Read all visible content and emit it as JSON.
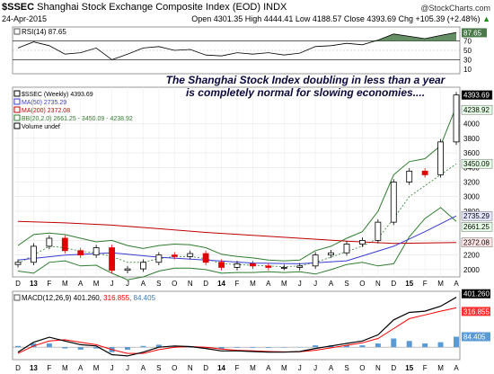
{
  "header": {
    "symbol": "$SSEC",
    "name": "Shanghai Stock Exchange Composite Index (EOD)",
    "exchange": "INDX",
    "source": "@StockCharts.com",
    "date": "24-Apr-2015",
    "open": "Open 4301.35",
    "high": "High 4444.41",
    "low": "Low 4188.57",
    "close": "Close 4393.69",
    "chg": "Chg +105.39 (+2.48%)",
    "chg_arrow": "▲"
  },
  "annotation": {
    "line1": "The Shanghai Stock Index doubling in less than a year",
    "line2": "is completely normal for slowing economies...."
  },
  "rsi_panel": {
    "legend": "RSI(14) 87.65",
    "ticks": [
      "90",
      "70",
      "50",
      "30",
      "10"
    ],
    "value_badge": "87.65",
    "current": 87.65
  },
  "price_panel": {
    "legend": [
      {
        "text": "$SSEC (Weekly) 4393.69",
        "color": "#000000"
      },
      {
        "text": "MA(50) 2735.29",
        "color": "#3a3ad0"
      },
      {
        "text": "MA(200) 2372.08",
        "color": "#c00000"
      },
      {
        "text": "BB(20,2.0) 2661.25 - 3450.09 - 4238.92",
        "color": "#2e7d2e"
      },
      {
        "text": "Volume undef",
        "color": "#000000"
      }
    ],
    "y_ticks": [
      "4000",
      "3800",
      "3600",
      "3400",
      "3200",
      "3000",
      "2800",
      "2600",
      "2400",
      "2200",
      "2000"
    ],
    "badges": [
      {
        "text": "4393.69",
        "value": 4393.69,
        "fill": "#000000",
        "color": "#ffffff"
      },
      {
        "text": "4238.92",
        "value": 4238.92,
        "fill": "#e6ffe6",
        "color": "#000000"
      },
      {
        "text": "3450.09",
        "value": 3450.09,
        "fill": "#e6ffe6",
        "color": "#000000"
      },
      {
        "text": "2735.29",
        "value": 2735.29,
        "fill": "#e6e6ff",
        "color": "#000000"
      },
      {
        "text": "2661.25",
        "value": 2661.25,
        "fill": "#e6ffe6",
        "color": "#000000"
      },
      {
        "text": "2372.08",
        "value": 2372.08,
        "fill": "#ffe6e6",
        "color": "#000000"
      }
    ]
  },
  "macd_panel": {
    "legend_label": "MACD(12,26,9)",
    "legend_macd": "401.260",
    "legend_signal": "316.855",
    "legend_hist": "84.405",
    "badges": [
      {
        "text": "401.260",
        "value": 401.26,
        "fill": "#000000",
        "color": "#ffffff"
      },
      {
        "text": "316.855",
        "value": 316.855,
        "fill": "#ff3030",
        "color": "#ffffff"
      },
      {
        "text": "84.405",
        "value": 84.405,
        "fill": "#5b9bd5",
        "color": "#ffffff"
      }
    ]
  },
  "x_axis": {
    "labels": [
      "D",
      "13",
      "F",
      "M",
      "A",
      "M",
      "J",
      "J",
      "A",
      "S",
      "O",
      "N",
      "D",
      "14",
      "F",
      "M",
      "A",
      "M",
      "J",
      "J",
      "A",
      "S",
      "O",
      "N",
      "D",
      "15",
      "F",
      "M",
      "A"
    ],
    "bold": [
      "13",
      "14",
      "15"
    ]
  },
  "colors": {
    "price_up": "#000000",
    "price_down": "#e00000",
    "ma50": "#3a3ad0",
    "ma200": "#c00000",
    "bb": "#2e7d2e",
    "macd": "#000000",
    "signal": "#ff0000",
    "histogram": "#5b9bd5",
    "rsi_fill": "#4a7a4a"
  },
  "chart_data": [
    {
      "type": "line",
      "xlabel": "",
      "ylabel": "",
      "ylim": [
        0,
        100
      ],
      "reference_lines": [
        70,
        30
      ],
      "series": [
        {
          "name": "RSI(14)",
          "x": [
            "2012-12",
            "2013-01",
            "2013-02",
            "2013-03",
            "2013-04",
            "2013-05",
            "2013-06",
            "2013-07",
            "2013-08",
            "2013-09",
            "2013-10",
            "2013-11",
            "2013-12",
            "2014-01",
            "2014-02",
            "2014-03",
            "2014-04",
            "2014-05",
            "2014-06",
            "2014-07",
            "2014-08",
            "2014-09",
            "2014-10",
            "2014-11",
            "2014-12",
            "2015-01",
            "2015-02",
            "2015-03",
            "2015-04"
          ],
          "values": [
            55,
            68,
            60,
            42,
            45,
            55,
            30,
            42,
            55,
            58,
            50,
            52,
            40,
            38,
            45,
            42,
            45,
            40,
            44,
            58,
            60,
            65,
            62,
            72,
            85,
            80,
            75,
            82,
            88
          ]
        }
      ]
    },
    {
      "type": "line",
      "xlabel": "",
      "ylabel": "",
      "ylim": [
        1900,
        4500
      ],
      "series": [
        {
          "name": "$SSEC (Weekly)",
          "x": [
            "2012-12",
            "2013-01",
            "2013-02",
            "2013-03",
            "2013-04",
            "2013-05",
            "2013-06",
            "2013-07",
            "2013-08",
            "2013-09",
            "2013-10",
            "2013-11",
            "2013-12",
            "2014-01",
            "2014-02",
            "2014-03",
            "2014-04",
            "2014-05",
            "2014-06",
            "2014-07",
            "2014-08",
            "2014-09",
            "2014-10",
            "2014-11",
            "2014-12",
            "2015-01",
            "2015-02",
            "2015-03",
            "2015-04"
          ],
          "values": [
            2100,
            2320,
            2430,
            2260,
            2200,
            2300,
            1990,
            2010,
            2100,
            2200,
            2180,
            2220,
            2100,
            2030,
            2080,
            2050,
            2030,
            2030,
            2050,
            2200,
            2230,
            2350,
            2400,
            2650,
            3200,
            3350,
            3300,
            3750,
            4393.69
          ]
        },
        {
          "name": "MA(50)",
          "x": [
            "2012-12",
            "2013-03",
            "2013-06",
            "2013-09",
            "2013-12",
            "2014-03",
            "2014-06",
            "2014-09",
            "2014-12",
            "2015-02",
            "2015-04"
          ],
          "values": [
            2130,
            2200,
            2230,
            2170,
            2130,
            2090,
            2080,
            2120,
            2320,
            2520,
            2735.29
          ]
        },
        {
          "name": "MA(200)",
          "x": [
            "2012-12",
            "2013-03",
            "2013-06",
            "2013-09",
            "2013-12",
            "2014-03",
            "2014-06",
            "2014-09",
            "2014-12",
            "2015-02",
            "2015-04"
          ],
          "values": [
            2660,
            2640,
            2610,
            2560,
            2510,
            2470,
            2430,
            2390,
            2360,
            2365,
            2372.08
          ]
        },
        {
          "name": "BB upper",
          "x": [
            "2012-12",
            "2013-01",
            "2013-02",
            "2013-03",
            "2013-04",
            "2013-05",
            "2013-06",
            "2013-07",
            "2013-08",
            "2013-09",
            "2013-10",
            "2013-11",
            "2013-12",
            "2014-01",
            "2014-02",
            "2014-03",
            "2014-04",
            "2014-05",
            "2014-06",
            "2014-07",
            "2014-08",
            "2014-09",
            "2014-10",
            "2014-11",
            "2014-12",
            "2015-01",
            "2015-02",
            "2015-03",
            "2015-04"
          ],
          "values": [
            2330,
            2480,
            2500,
            2480,
            2430,
            2380,
            2400,
            2330,
            2290,
            2330,
            2350,
            2340,
            2300,
            2210,
            2180,
            2160,
            2130,
            2120,
            2130,
            2260,
            2320,
            2430,
            2520,
            2800,
            3300,
            3480,
            3520,
            3700,
            4238.92
          ]
        },
        {
          "name": "BB middle",
          "x": [
            "2012-12",
            "2013-01",
            "2013-02",
            "2013-03",
            "2013-04",
            "2013-05",
            "2013-06",
            "2013-07",
            "2013-08",
            "2013-09",
            "2013-10",
            "2013-11",
            "2013-12",
            "2014-01",
            "2014-02",
            "2014-03",
            "2014-04",
            "2014-05",
            "2014-06",
            "2014-07",
            "2014-08",
            "2014-09",
            "2014-10",
            "2014-11",
            "2014-12",
            "2015-01",
            "2015-02",
            "2015-03",
            "2015-04"
          ],
          "values": [
            2080,
            2200,
            2320,
            2300,
            2250,
            2230,
            2180,
            2100,
            2100,
            2150,
            2180,
            2180,
            2150,
            2080,
            2070,
            2060,
            2050,
            2040,
            2050,
            2100,
            2170,
            2250,
            2320,
            2430,
            2700,
            3000,
            3150,
            3300,
            3450.09
          ]
        },
        {
          "name": "BB lower",
          "x": [
            "2012-12",
            "2013-01",
            "2013-02",
            "2013-03",
            "2013-04",
            "2013-05",
            "2013-06",
            "2013-07",
            "2013-08",
            "2013-09",
            "2013-10",
            "2013-11",
            "2013-12",
            "2014-01",
            "2014-02",
            "2014-03",
            "2014-04",
            "2014-05",
            "2014-06",
            "2014-07",
            "2014-08",
            "2014-09",
            "2014-10",
            "2014-11",
            "2014-12",
            "2015-01",
            "2015-02",
            "2015-03",
            "2015-04"
          ],
          "values": [
            1980,
            1950,
            2100,
            2120,
            2050,
            2060,
            1950,
            1860,
            1900,
            1980,
            2020,
            2020,
            2000,
            1950,
            1960,
            1960,
            1970,
            1960,
            1970,
            1940,
            2000,
            2070,
            2100,
            2050,
            2080,
            2450,
            2700,
            2850,
            2661.25
          ]
        }
      ]
    },
    {
      "type": "line",
      "xlabel": "",
      "ylabel": "",
      "ylim": [
        -100,
        450
      ],
      "series": [
        {
          "name": "MACD",
          "x": [
            "2012-12",
            "2013-01",
            "2013-02",
            "2013-03",
            "2013-04",
            "2013-05",
            "2013-06",
            "2013-07",
            "2013-08",
            "2013-09",
            "2013-10",
            "2013-11",
            "2013-12",
            "2014-01",
            "2014-02",
            "2014-03",
            "2014-04",
            "2014-05",
            "2014-06",
            "2014-07",
            "2014-08",
            "2014-09",
            "2014-10",
            "2014-11",
            "2014-12",
            "2015-01",
            "2015-02",
            "2015-03",
            "2015-04"
          ],
          "values": [
            -40,
            40,
            80,
            50,
            20,
            10,
            -60,
            -70,
            -40,
            0,
            10,
            5,
            -10,
            -30,
            -30,
            -35,
            -40,
            -40,
            -35,
            -10,
            10,
            30,
            50,
            100,
            220,
            280,
            290,
            330,
            401.26
          ]
        },
        {
          "name": "Signal",
          "x": [
            "2012-12",
            "2013-01",
            "2013-02",
            "2013-03",
            "2013-04",
            "2013-05",
            "2013-06",
            "2013-07",
            "2013-08",
            "2013-09",
            "2013-10",
            "2013-11",
            "2013-12",
            "2014-01",
            "2014-02",
            "2014-03",
            "2014-04",
            "2014-05",
            "2014-06",
            "2014-07",
            "2014-08",
            "2014-09",
            "2014-10",
            "2014-11",
            "2014-12",
            "2015-01",
            "2015-02",
            "2015-03",
            "2015-04"
          ],
          "values": [
            -50,
            10,
            50,
            60,
            40,
            20,
            -20,
            -50,
            -50,
            -20,
            0,
            5,
            0,
            -15,
            -25,
            -30,
            -35,
            -38,
            -37,
            -25,
            -5,
            15,
            35,
            70,
            150,
            230,
            260,
            290,
            316.855
          ]
        },
        {
          "name": "Histogram",
          "x": [
            "2012-12",
            "2013-01",
            "2013-02",
            "2013-03",
            "2013-04",
            "2013-05",
            "2013-06",
            "2013-07",
            "2013-08",
            "2013-09",
            "2013-10",
            "2013-11",
            "2013-12",
            "2014-01",
            "2014-02",
            "2014-03",
            "2014-04",
            "2014-05",
            "2014-06",
            "2014-07",
            "2014-08",
            "2014-09",
            "2014-10",
            "2014-11",
            "2014-12",
            "2015-01",
            "2015-02",
            "2015-03",
            "2015-04"
          ],
          "values": [
            10,
            30,
            30,
            -10,
            -20,
            -10,
            -40,
            -20,
            10,
            20,
            10,
            0,
            -10,
            -15,
            -5,
            -5,
            -5,
            -2,
            2,
            15,
            15,
            15,
            15,
            30,
            70,
            50,
            30,
            40,
            84.405
          ]
        }
      ]
    }
  ]
}
